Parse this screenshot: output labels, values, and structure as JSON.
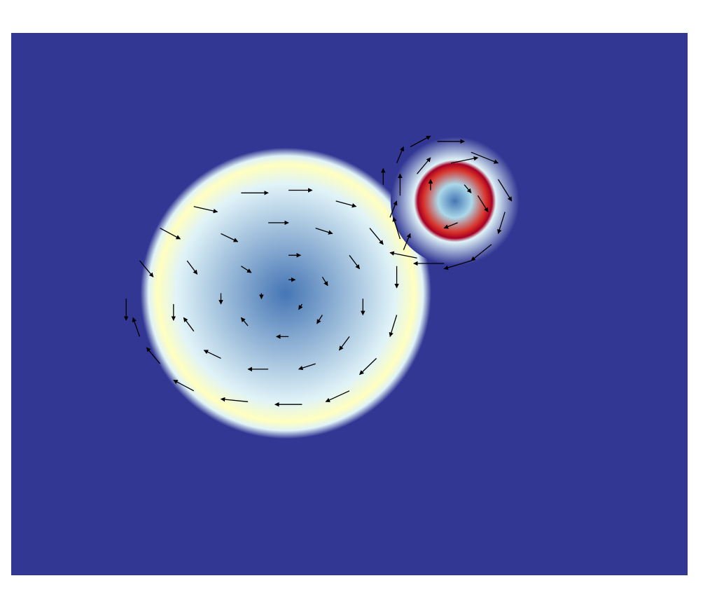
{
  "chart_data": {
    "type": "heatmap",
    "overlay": "quiver",
    "title": "",
    "xlabel": "",
    "ylabel": "",
    "xlim": [
      0,
      1
    ],
    "ylim": [
      0,
      1
    ],
    "grid": false,
    "legend": "none",
    "colormap": [
      "#313695",
      "#4575b4",
      "#abd9e9",
      "#e0f3f8",
      "#ffffbf",
      "#fee090",
      "#f46d43",
      "#d73027",
      "#a50026"
    ],
    "background_color": "#333794",
    "field_blobs": [
      {
        "name": "large-vortex",
        "cx": 0.406,
        "cy": 0.52,
        "r_inner": 0.0,
        "r_peak": 0.19,
        "r_outer": 0.215,
        "peak_level": 0.45,
        "center_level": 0.12
      },
      {
        "name": "small-vortex",
        "cx": 0.656,
        "cy": 0.69,
        "r_inner": 0.025,
        "r_peak": 0.055,
        "r_outer": 0.095,
        "peak_level": 0.95,
        "center_level": 0.15
      }
    ],
    "vectors": [
      {
        "x": 0.17,
        "y": 0.51,
        "u": 0.0,
        "v": -0.04
      },
      {
        "x": 0.19,
        "y": 0.58,
        "u": 0.02,
        "v": -0.03
      },
      {
        "x": 0.22,
        "y": 0.64,
        "u": 0.03,
        "v": -0.02
      },
      {
        "x": 0.27,
        "y": 0.68,
        "u": 0.035,
        "v": -0.01
      },
      {
        "x": 0.34,
        "y": 0.705,
        "u": 0.04,
        "v": 0.0
      },
      {
        "x": 0.41,
        "y": 0.71,
        "u": 0.035,
        "v": 0.0
      },
      {
        "x": 0.48,
        "y": 0.69,
        "u": 0.03,
        "v": -0.01
      },
      {
        "x": 0.53,
        "y": 0.64,
        "u": 0.02,
        "v": -0.03
      },
      {
        "x": 0.57,
        "y": 0.57,
        "u": 0.0,
        "v": -0.04
      },
      {
        "x": 0.57,
        "y": 0.48,
        "u": -0.01,
        "v": -0.04
      },
      {
        "x": 0.54,
        "y": 0.4,
        "u": -0.025,
        "v": -0.03
      },
      {
        "x": 0.5,
        "y": 0.34,
        "u": -0.035,
        "v": -0.02
      },
      {
        "x": 0.43,
        "y": 0.315,
        "u": -0.04,
        "v": 0.0
      },
      {
        "x": 0.35,
        "y": 0.32,
        "u": -0.04,
        "v": 0.005
      },
      {
        "x": 0.27,
        "y": 0.34,
        "u": -0.03,
        "v": 0.02
      },
      {
        "x": 0.22,
        "y": 0.39,
        "u": -0.02,
        "v": 0.03
      },
      {
        "x": 0.19,
        "y": 0.44,
        "u": -0.01,
        "v": 0.035
      },
      {
        "x": 0.24,
        "y": 0.5,
        "u": 0.0,
        "v": -0.03
      },
      {
        "x": 0.26,
        "y": 0.58,
        "u": 0.015,
        "v": -0.025
      },
      {
        "x": 0.31,
        "y": 0.63,
        "u": 0.025,
        "v": -0.015
      },
      {
        "x": 0.38,
        "y": 0.65,
        "u": 0.03,
        "v": 0.0
      },
      {
        "x": 0.45,
        "y": 0.64,
        "u": 0.025,
        "v": -0.01
      },
      {
        "x": 0.5,
        "y": 0.59,
        "u": 0.015,
        "v": -0.025
      },
      {
        "x": 0.52,
        "y": 0.51,
        "u": 0.0,
        "v": -0.03
      },
      {
        "x": 0.5,
        "y": 0.44,
        "u": -0.015,
        "v": -0.025
      },
      {
        "x": 0.45,
        "y": 0.39,
        "u": -0.025,
        "v": -0.01
      },
      {
        "x": 0.38,
        "y": 0.38,
        "u": -0.03,
        "v": 0.0
      },
      {
        "x": 0.31,
        "y": 0.4,
        "u": -0.025,
        "v": 0.015
      },
      {
        "x": 0.27,
        "y": 0.45,
        "u": -0.015,
        "v": 0.025
      },
      {
        "x": 0.31,
        "y": 0.52,
        "u": 0.0,
        "v": -0.02
      },
      {
        "x": 0.34,
        "y": 0.57,
        "u": 0.015,
        "v": -0.012
      },
      {
        "x": 0.41,
        "y": 0.59,
        "u": 0.018,
        "v": 0.0
      },
      {
        "x": 0.46,
        "y": 0.55,
        "u": 0.008,
        "v": -0.016
      },
      {
        "x": 0.46,
        "y": 0.48,
        "u": -0.008,
        "v": -0.016
      },
      {
        "x": 0.41,
        "y": 0.44,
        "u": -0.018,
        "v": 0.0
      },
      {
        "x": 0.35,
        "y": 0.46,
        "u": -0.01,
        "v": 0.015
      },
      {
        "x": 0.37,
        "y": 0.52,
        "u": 0.0,
        "v": -0.01
      },
      {
        "x": 0.41,
        "y": 0.545,
        "u": 0.01,
        "v": 0.0
      },
      {
        "x": 0.43,
        "y": 0.5,
        "u": -0.005,
        "v": -0.01
      },
      {
        "x": 0.56,
        "y": 0.66,
        "u": 0.01,
        "v": 0.03
      },
      {
        "x": 0.58,
        "y": 0.6,
        "u": 0.01,
        "v": 0.03
      },
      {
        "x": 0.55,
        "y": 0.72,
        "u": 0.0,
        "v": 0.03
      },
      {
        "x": 0.57,
        "y": 0.76,
        "u": 0.01,
        "v": 0.03
      },
      {
        "x": 0.59,
        "y": 0.79,
        "u": 0.03,
        "v": 0.02
      },
      {
        "x": 0.63,
        "y": 0.8,
        "u": 0.04,
        "v": 0.0
      },
      {
        "x": 0.68,
        "y": 0.78,
        "u": 0.04,
        "v": -0.02
      },
      {
        "x": 0.72,
        "y": 0.73,
        "u": 0.02,
        "v": -0.04
      },
      {
        "x": 0.73,
        "y": 0.67,
        "u": -0.01,
        "v": -0.04
      },
      {
        "x": 0.71,
        "y": 0.61,
        "u": -0.03,
        "v": -0.03
      },
      {
        "x": 0.68,
        "y": 0.58,
        "u": -0.04,
        "v": -0.015
      },
      {
        "x": 0.64,
        "y": 0.575,
        "u": -0.045,
        "v": 0.0
      },
      {
        "x": 0.6,
        "y": 0.585,
        "u": -0.04,
        "v": 0.01
      },
      {
        "x": 0.575,
        "y": 0.62,
        "u": -0.01,
        "v": 0.04
      },
      {
        "x": 0.575,
        "y": 0.7,
        "u": 0.0,
        "v": 0.04
      },
      {
        "x": 0.6,
        "y": 0.74,
        "u": 0.02,
        "v": 0.03
      },
      {
        "x": 0.65,
        "y": 0.76,
        "u": 0.04,
        "v": 0.01
      },
      {
        "x": 0.69,
        "y": 0.7,
        "u": 0.015,
        "v": -0.03
      },
      {
        "x": 0.62,
        "y": 0.71,
        "u": 0.0,
        "v": 0.02
      },
      {
        "x": 0.66,
        "y": 0.65,
        "u": -0.02,
        "v": -0.01
      },
      {
        "x": 0.67,
        "y": 0.72,
        "u": 0.01,
        "v": -0.015
      }
    ]
  }
}
